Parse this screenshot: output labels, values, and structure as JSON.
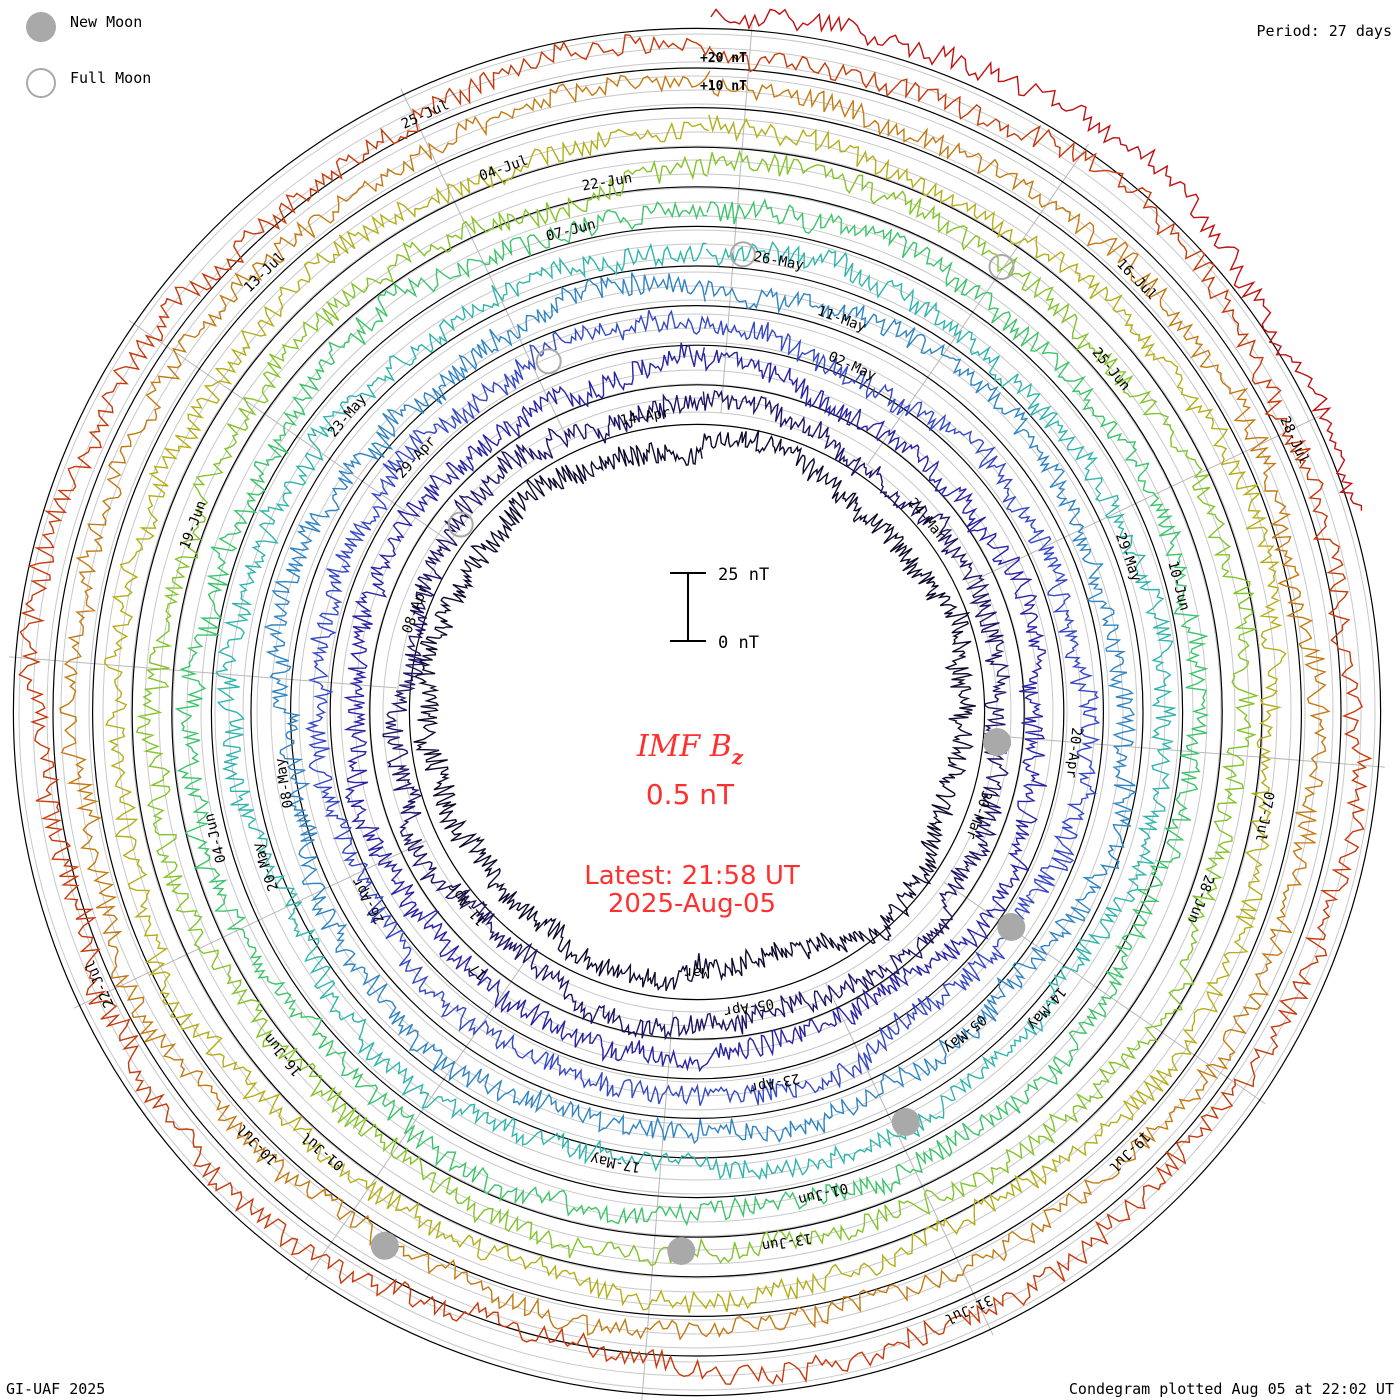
{
  "legend": {
    "new_moon_label": "New Moon",
    "full_moon_label": "Full Moon",
    "new_moon_color": "#a9a9a9",
    "full_moon_color": "#a9a9a9"
  },
  "period_label": "Period: 27 days",
  "footer_left": "GI-UAF 2025",
  "footer_right": "Condegram plotted Aug 05 at 22:02 UT",
  "scale_labels": {
    "plus20": "+20 nT",
    "plus10": "+10 nT"
  },
  "scale_bar": {
    "top_label": "25 nT",
    "bottom_label": "0 nT"
  },
  "center": {
    "title": "IMF B",
    "title_sub": "z",
    "value": "0.5 nT",
    "latest_line1": "Latest: 21:58 UT",
    "latest_line2": "2025-Aug-05",
    "color": "#ff3030"
  },
  "chart_data": {
    "type": "line",
    "subtype": "spiral condegram",
    "period_days": 27,
    "quantity": "IMF Bz",
    "units": "nT",
    "latest_value": 0.5,
    "rotations": [
      {
        "color": "#0e0a2e",
        "date_labels": [
          "Mar"
        ]
      },
      {
        "color": "#1e1468",
        "date_labels": [
          "24-Mar",
          "30-Mar",
          "05-Apr",
          "11-Apr",
          "08-Apr",
          "14-Apr"
        ]
      },
      {
        "color": "#2822a6",
        "date_labels": [
          "17"
        ]
      },
      {
        "color": "#3548c8",
        "date_labels": [
          "20-Apr",
          "23-Apr",
          "26-Apr",
          "29-Apr",
          "02-May"
        ]
      },
      {
        "color": "#2f84c4",
        "date_labels": [
          "05-May",
          "08-May",
          "11-May"
        ]
      },
      {
        "color": "#2fb5ad",
        "date_labels": [
          "14-May",
          "17-May",
          "20-May",
          "23-May",
          "26-May",
          "29-May"
        ]
      },
      {
        "color": "#3cc46a",
        "date_labels": [
          "01-Jun",
          "04-Jun",
          "07-Jun",
          "10-Jun"
        ]
      },
      {
        "color": "#84c42a",
        "date_labels": [
          "13-Jun",
          "16-Jun",
          "19-Jun",
          "22-Jun",
          "25-Jun",
          "28-Jun"
        ]
      },
      {
        "color": "#b5ae18",
        "date_labels": [
          "01-Jul",
          "04-Jul",
          "07-Jul"
        ]
      },
      {
        "color": "#c47a12",
        "date_labels": [
          "10-Jul",
          "13-Jul",
          "16-Jul",
          "19-Jul"
        ]
      },
      {
        "color": "#c63a0c",
        "date_labels": [
          "22-Jul",
          "25-Jul",
          "28-Jul",
          "31-Jul"
        ]
      },
      {
        "color": "#c01010",
        "date_labels": []
      }
    ],
    "new_moons": [
      "29-Mar",
      "27-Apr",
      "27-May",
      "25-Jun",
      "24-Jul"
    ],
    "full_moons": [
      "13-Apr",
      "12-May",
      "11-Jun",
      "10-Jul"
    ],
    "grid": true
  }
}
